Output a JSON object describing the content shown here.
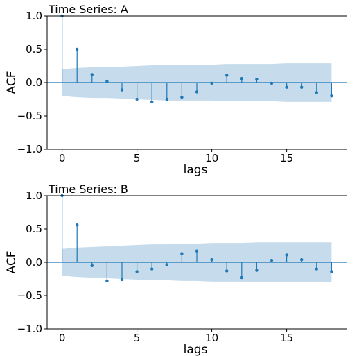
{
  "chart_data": [
    {
      "type": "stem",
      "title": "Time Series: A",
      "xlabel": "lags",
      "ylabel": "ACF",
      "ylim": [
        -1.0,
        1.0
      ],
      "xlim": [
        -1,
        19
      ],
      "xticks": [
        0,
        5,
        10,
        15
      ],
      "yticks": [
        -1.0,
        -0.5,
        0.0,
        0.5,
        1.0
      ],
      "ytick_labels": [
        "−1.0",
        "−0.5",
        "0.0",
        "0.5",
        "1.0"
      ],
      "grid": false,
      "lags": [
        0,
        1,
        2,
        3,
        4,
        5,
        6,
        7,
        8,
        9,
        10,
        11,
        12,
        13,
        14,
        15,
        16,
        17,
        18
      ],
      "values": [
        1.0,
        0.5,
        0.12,
        0.02,
        -0.11,
        -0.25,
        -0.29,
        -0.25,
        -0.22,
        -0.14,
        -0.01,
        0.11,
        0.06,
        0.05,
        -0.01,
        -0.07,
        -0.07,
        -0.15,
        -0.2
      ],
      "confidence_band": {
        "lags": [
          0,
          1,
          2,
          3,
          4,
          5,
          6,
          7,
          8,
          9,
          10,
          11,
          12,
          13,
          14,
          15,
          16,
          17,
          18
        ],
        "upper": [
          0.2,
          0.22,
          0.23,
          0.23,
          0.24,
          0.25,
          0.26,
          0.27,
          0.27,
          0.27,
          0.27,
          0.28,
          0.28,
          0.28,
          0.28,
          0.29,
          0.29,
          0.29,
          0.29
        ],
        "lower": [
          -0.2,
          -0.22,
          -0.23,
          -0.23,
          -0.24,
          -0.25,
          -0.26,
          -0.27,
          -0.27,
          -0.27,
          -0.27,
          -0.28,
          -0.28,
          -0.28,
          -0.28,
          -0.29,
          -0.29,
          -0.29,
          -0.29
        ]
      },
      "colors": {
        "stem": "#1f77b4",
        "band": "#c6dbec",
        "zero_line": "#1f77b4"
      }
    },
    {
      "type": "stem",
      "title": "Time Series: B",
      "xlabel": "lags",
      "ylabel": "ACF",
      "ylim": [
        -1.0,
        1.0
      ],
      "xlim": [
        -1,
        19
      ],
      "xticks": [
        0,
        5,
        10,
        15
      ],
      "yticks": [
        -1.0,
        -0.5,
        0.0,
        0.5,
        1.0
      ],
      "ytick_labels": [
        "−1.0",
        "−0.5",
        "0.0",
        "0.5",
        "1.0"
      ],
      "grid": false,
      "lags": [
        0,
        1,
        2,
        3,
        4,
        5,
        6,
        7,
        8,
        9,
        10,
        11,
        12,
        13,
        14,
        15,
        16,
        17,
        18
      ],
      "values": [
        1.0,
        0.56,
        -0.05,
        -0.28,
        -0.26,
        -0.14,
        -0.1,
        -0.04,
        0.13,
        0.17,
        0.04,
        -0.13,
        -0.23,
        -0.12,
        0.03,
        0.11,
        0.04,
        -0.1,
        -0.14
      ],
      "confidence_band": {
        "lags": [
          0,
          1,
          2,
          3,
          4,
          5,
          6,
          7,
          8,
          9,
          10,
          11,
          12,
          13,
          14,
          15,
          16,
          17,
          18
        ],
        "upper": [
          0.2,
          0.22,
          0.23,
          0.24,
          0.25,
          0.26,
          0.27,
          0.27,
          0.28,
          0.28,
          0.29,
          0.29,
          0.29,
          0.3,
          0.3,
          0.3,
          0.3,
          0.3,
          0.3
        ],
        "lower": [
          -0.2,
          -0.22,
          -0.23,
          -0.24,
          -0.25,
          -0.26,
          -0.27,
          -0.27,
          -0.28,
          -0.28,
          -0.29,
          -0.29,
          -0.29,
          -0.3,
          -0.3,
          -0.3,
          -0.3,
          -0.3,
          -0.3
        ]
      },
      "colors": {
        "stem": "#1f77b4",
        "band": "#c6dbec",
        "zero_line": "#1f77b4"
      }
    }
  ]
}
